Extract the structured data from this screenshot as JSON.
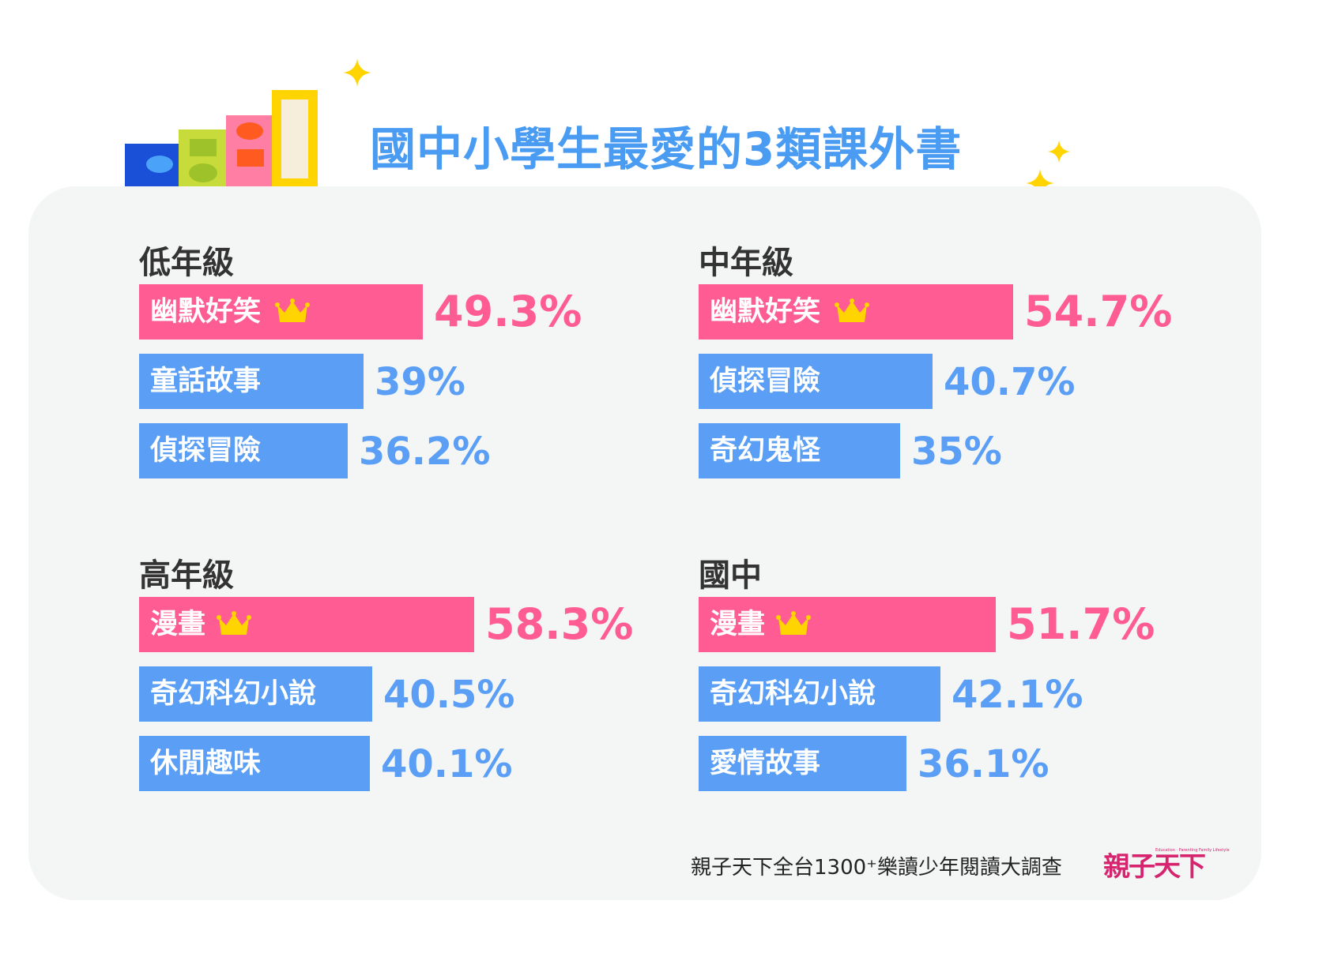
{
  "title": "國中小學生最愛的3類課外書",
  "footer": {
    "source": "親子天下全台1300⁺樂讀少年閱讀大調查",
    "logo": "親子天下",
    "logo_tagline": "Education · Parenting Family Lifestyle"
  },
  "colors": {
    "title": "#4a9cf3",
    "top_bar": "#ff5c93",
    "bar": "#5a9ff5",
    "panel": "#f4f6f5",
    "crown": "#ffd400"
  },
  "chart_data": [
    {
      "type": "bar",
      "title": "低年級",
      "categories": [
        "幽默好笑",
        "童話故事",
        "偵探冒險"
      ],
      "values": [
        49.3,
        39,
        36.2
      ],
      "labels": [
        "49.3%",
        "39%",
        "36.2%"
      ],
      "crown_on": "幽默好笑"
    },
    {
      "type": "bar",
      "title": "中年級",
      "categories": [
        "幽默好笑",
        "偵探冒險",
        "奇幻鬼怪"
      ],
      "values": [
        54.7,
        40.7,
        35
      ],
      "labels": [
        "54.7%",
        "40.7%",
        "35%"
      ],
      "crown_on": "幽默好笑"
    },
    {
      "type": "bar",
      "title": "高年級",
      "categories": [
        "漫畫",
        "奇幻科幻小說",
        "休閒趣味"
      ],
      "values": [
        58.3,
        40.5,
        40.1
      ],
      "labels": [
        "58.3%",
        "40.5%",
        "40.1%"
      ],
      "crown_on": "漫畫"
    },
    {
      "type": "bar",
      "title": "國中",
      "categories": [
        "漫畫",
        "奇幻科幻小說",
        "愛情故事"
      ],
      "values": [
        51.7,
        42.1,
        36.1
      ],
      "labels": [
        "51.7%",
        "42.1%",
        "36.1%"
      ],
      "crown_on": "漫畫"
    }
  ]
}
